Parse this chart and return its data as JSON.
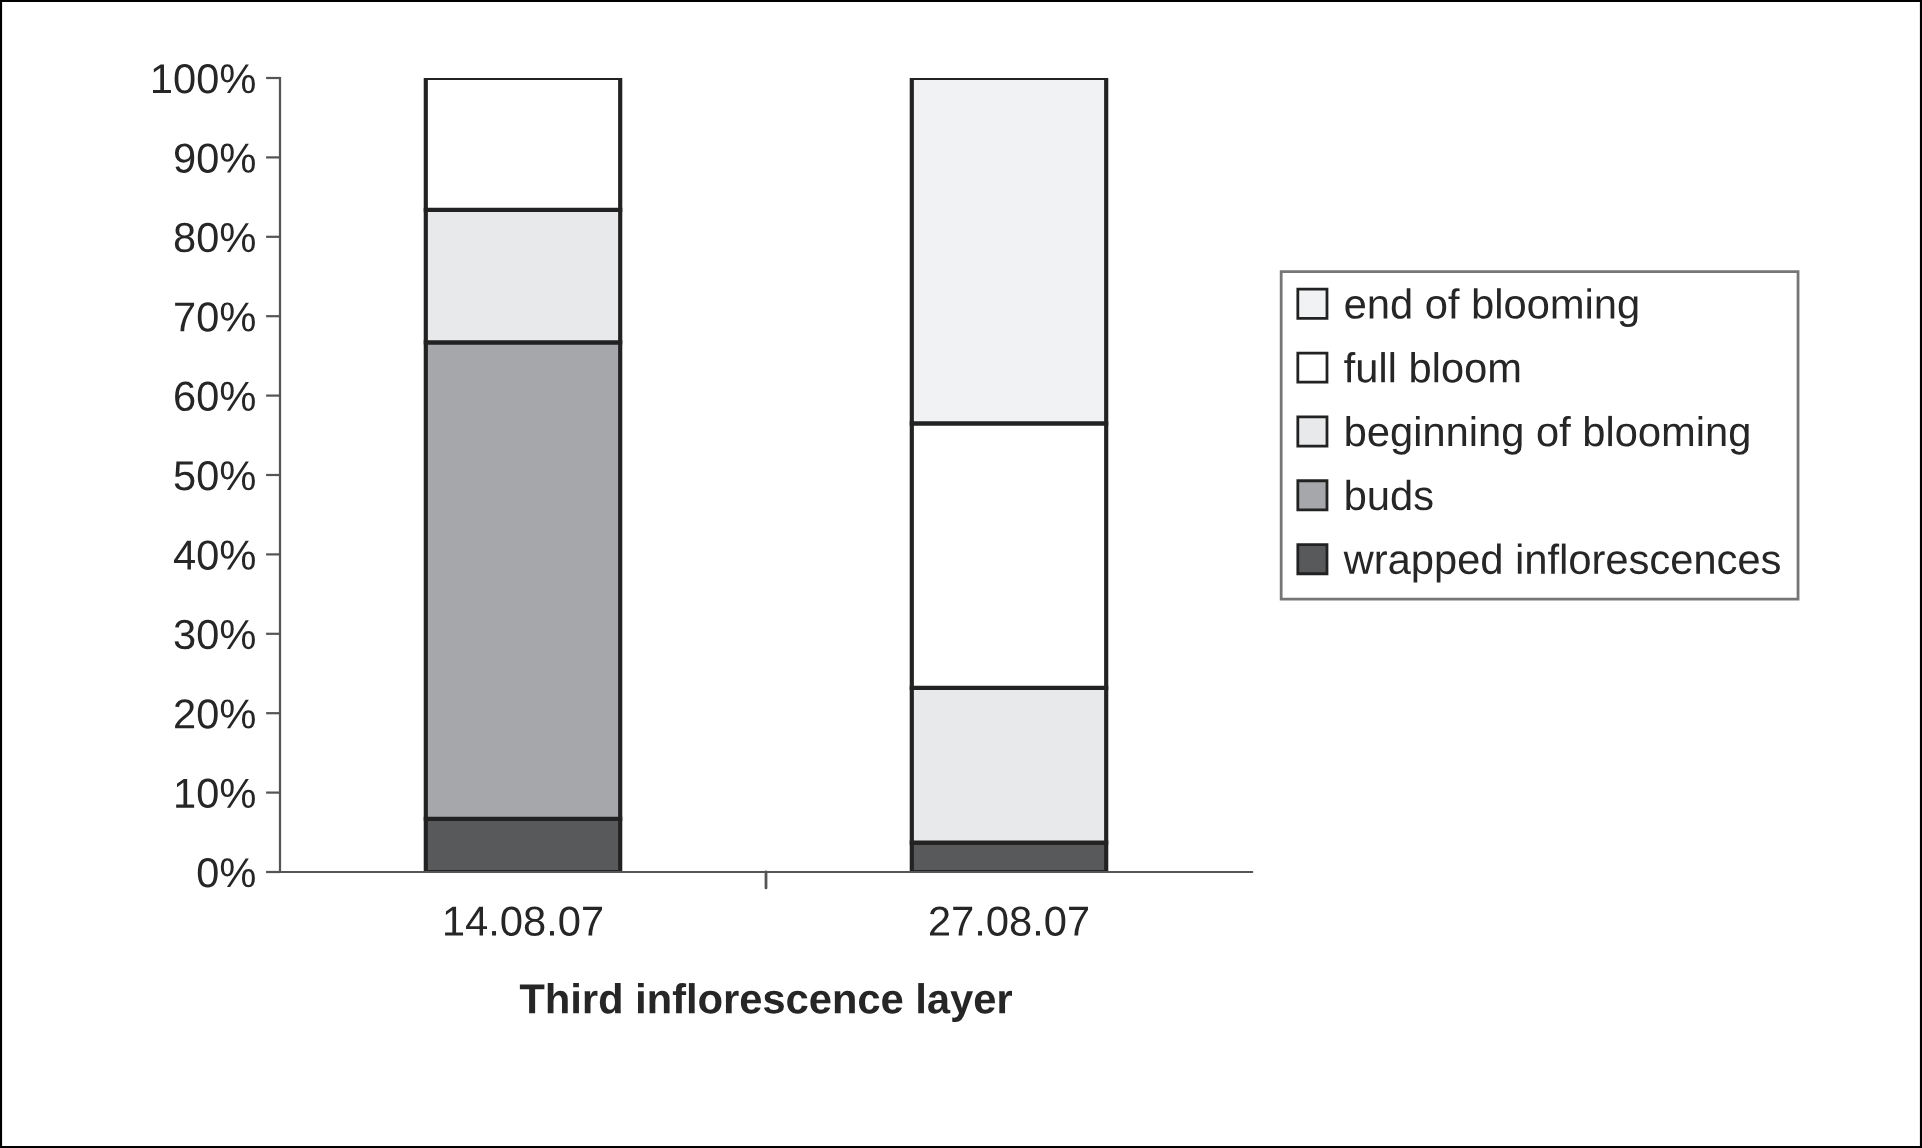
{
  "chart_data": {
    "type": "bar",
    "stacked": true,
    "xlabel": "Third inflorescence layer",
    "categories": [
      "14.08.07",
      "27.08.07"
    ],
    "series": [
      {
        "name": "wrapped inflorescences",
        "color": "#58595b",
        "values": [
          6.7,
          3.7
        ]
      },
      {
        "name": "buds",
        "color": "#a6a7aa",
        "values": [
          60,
          0
        ]
      },
      {
        "name": "beginning of blooming",
        "color": "#e8e9ea",
        "values": [
          16.7,
          19.5
        ]
      },
      {
        "name": "full bloom",
        "color": "#ffffff",
        "values": [
          16.6,
          33.3
        ]
      },
      {
        "name": "end of blooming",
        "color": "#f1f2f3",
        "values": [
          0,
          43.5
        ]
      }
    ],
    "ylim": [
      0,
      100
    ],
    "yticks": [
      {
        "value": 0,
        "label": "0%"
      },
      {
        "value": 10,
        "label": "10%"
      },
      {
        "value": 20,
        "label": "20%"
      },
      {
        "value": 30,
        "label": "30%"
      },
      {
        "value": 40,
        "label": "40%"
      },
      {
        "value": 50,
        "label": "50%"
      },
      {
        "value": 60,
        "label": "60%"
      },
      {
        "value": 70,
        "label": "70%"
      },
      {
        "value": 80,
        "label": "80%"
      },
      {
        "value": 90,
        "label": "90%"
      },
      {
        "value": 100,
        "label": "100%"
      }
    ],
    "grid": false,
    "legend": "right"
  }
}
